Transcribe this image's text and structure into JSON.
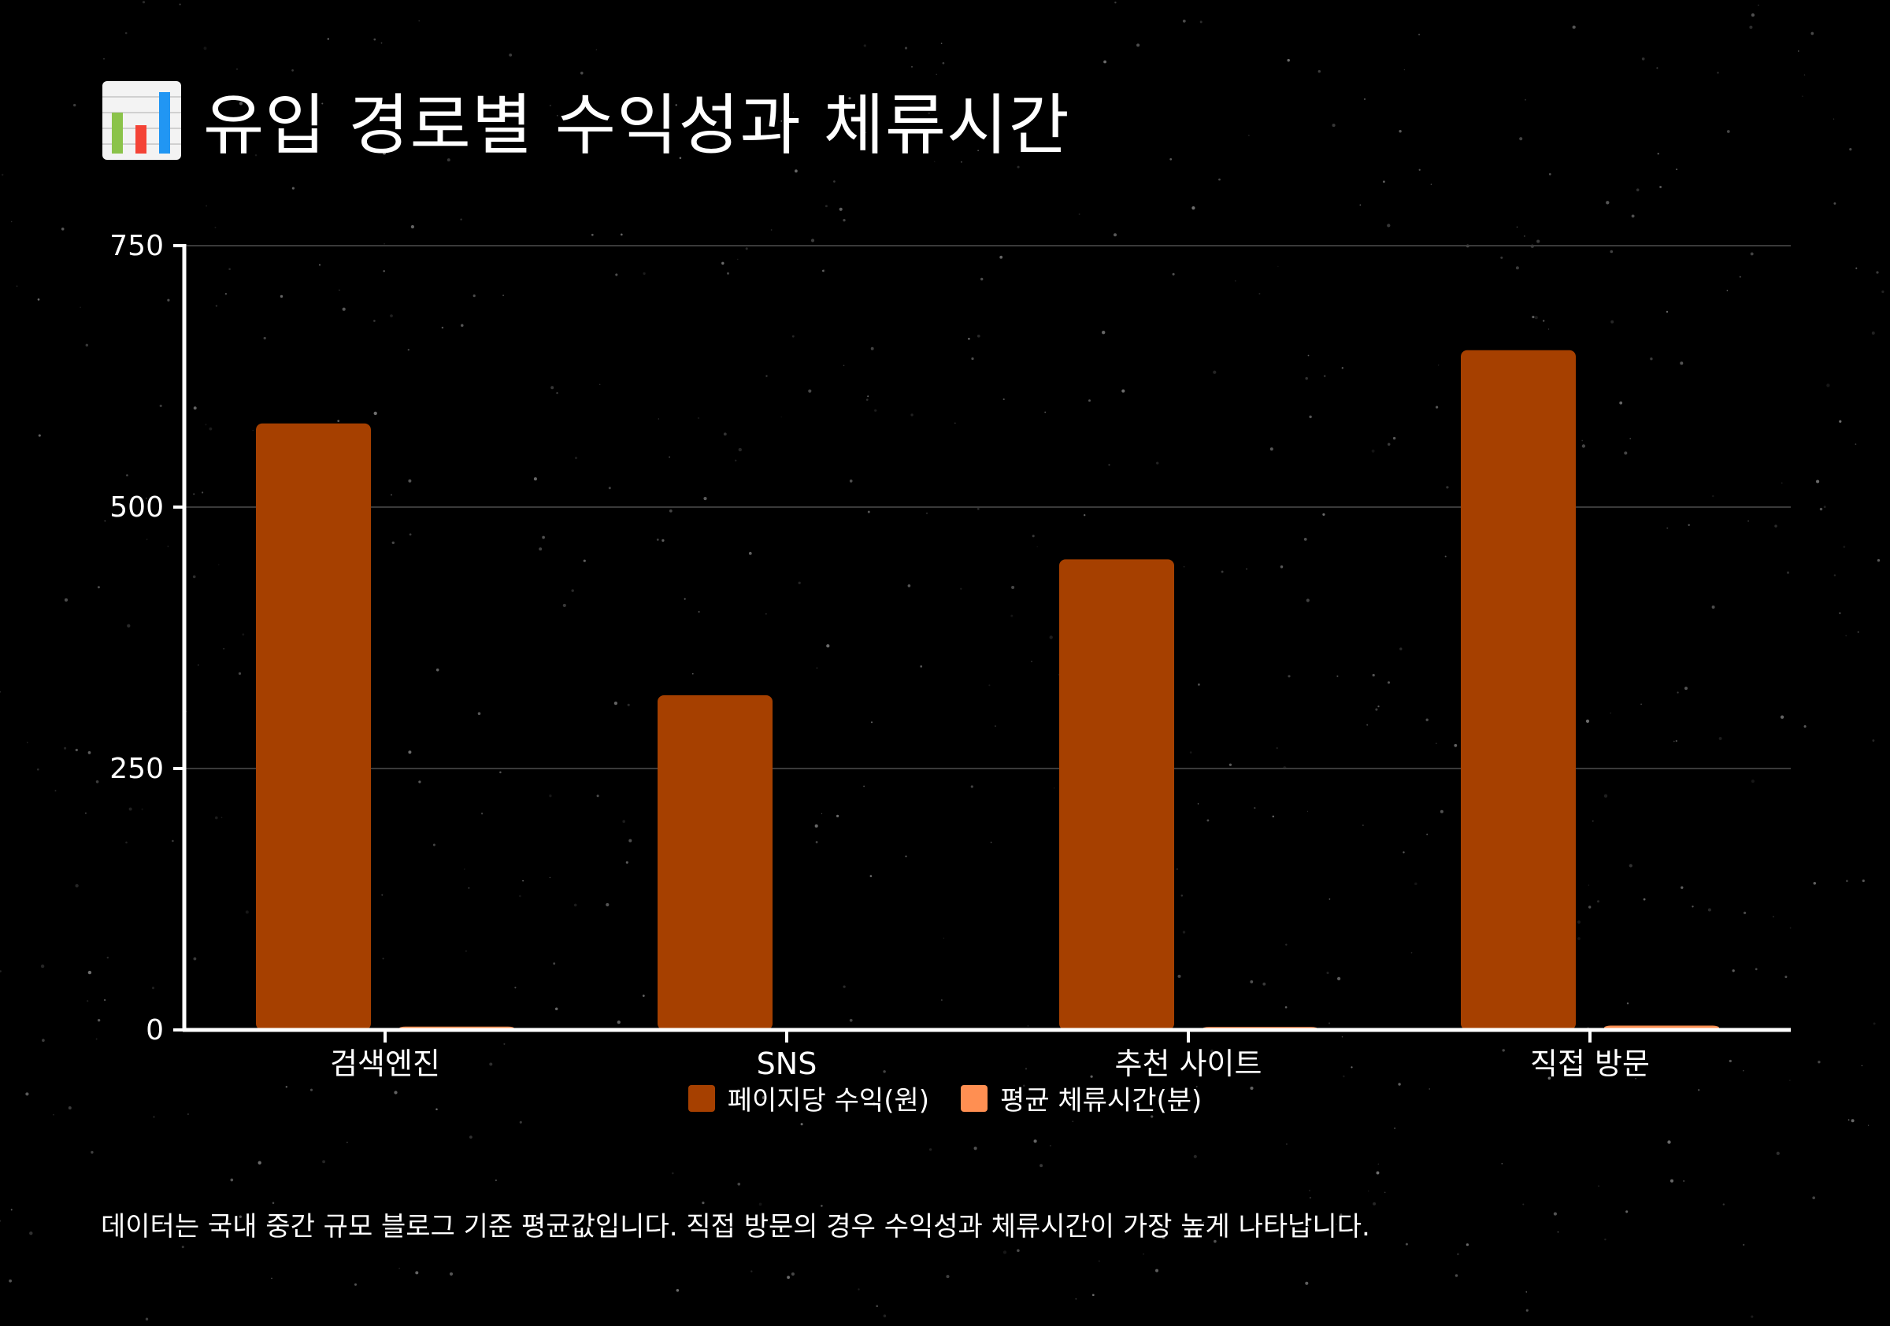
{
  "title": "유입 경로별 수익성과 체류시간",
  "title_icon": "bar-chart-icon",
  "chart_data": {
    "type": "bar",
    "categories": [
      "검색엔진",
      "SNS",
      "추천 사이트",
      "직접 방문"
    ],
    "series": [
      {
        "name": "페이지당 수익(원)",
        "values": [
          580,
          320,
          450,
          650
        ],
        "color": "#a64000"
      },
      {
        "name": "평균 체류시간(분)",
        "values": [
          3.2,
          1.5,
          2.8,
          4.1
        ],
        "color": "#ff8f52"
      }
    ],
    "ylim": [
      0,
      750
    ],
    "yticks": [
      0,
      250,
      500,
      750
    ],
    "grid": true,
    "legend_position": "bottom"
  },
  "footnote": "데이터는 국내 중간 규모 블로그 기준 평균값입니다. 직접 방문의 경우 수익성과 체류시간이 가장 높게 나타납니다."
}
